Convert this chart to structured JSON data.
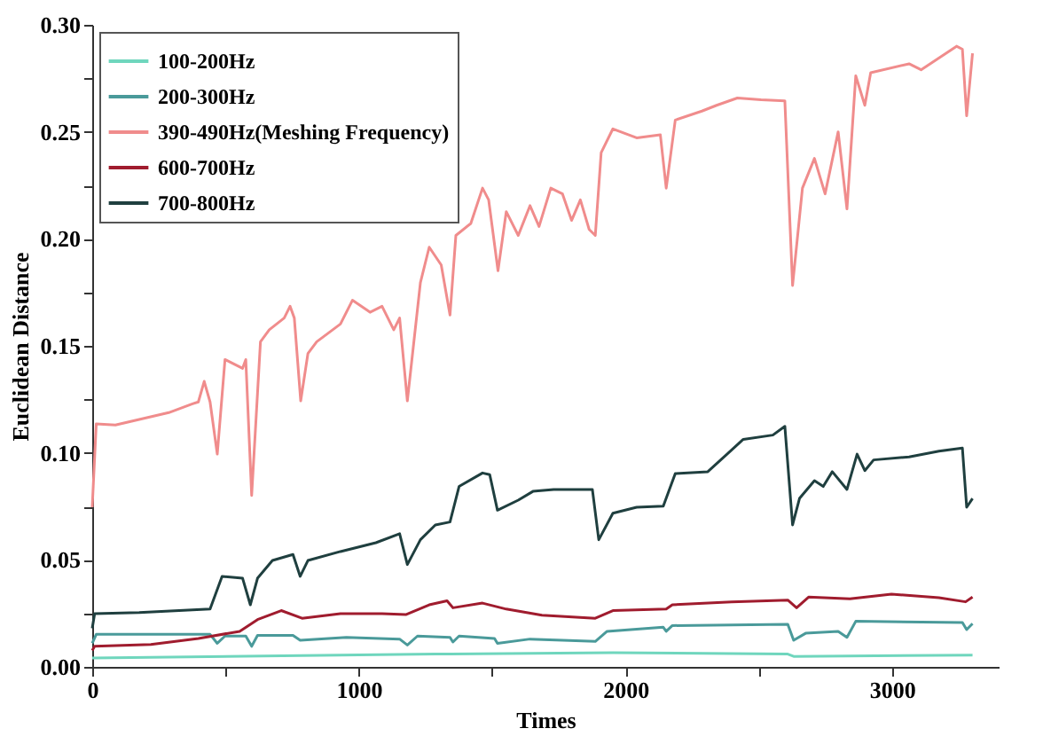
{
  "chart_data": {
    "type": "line",
    "xlabel": "Times",
    "ylabel": "Euclidean Distance",
    "xlim": [
      0,
      3400
    ],
    "ylim": [
      0,
      0.3
    ],
    "xticks": [
      0,
      {
        "value": 500,
        "label": null
      },
      1000,
      {
        "value": 1500,
        "label": null
      },
      2000,
      {
        "value": 2500,
        "label": null
      },
      3000
    ],
    "yticks": [
      {
        "value": 0,
        "label": "0.00"
      },
      {
        "value": 0.025,
        "label": null
      },
      {
        "value": 0.05,
        "label": "0.05"
      },
      {
        "value": 0.075,
        "label": null
      },
      {
        "value": 0.1,
        "label": "0.10"
      },
      {
        "value": 0.125,
        "label": null
      },
      {
        "value": 0.15,
        "label": "0.15"
      },
      {
        "value": 0.175,
        "label": null
      },
      {
        "value": 0.2,
        "label": "0.20"
      },
      {
        "value": 0.225,
        "label": null
      },
      {
        "value": 0.25,
        "label": "0.25"
      },
      {
        "value": 0.275,
        "label": null
      },
      {
        "value": 0.3,
        "label": "0.30"
      }
    ],
    "grid": false,
    "legend": "top left",
    "marker": "none",
    "line_style": "solid",
    "series": [
      {
        "name": "100-200Hz",
        "color": "#6fd6bd",
        "x": [
          0,
          1287,
          1953,
          2609,
          2631,
          3302
        ],
        "values": [
          0.0041,
          0.006,
          0.0066,
          0.006,
          0.0049,
          0.0055
        ]
      },
      {
        "name": "200-300Hz",
        "color": "#4a9a9a",
        "x": [
          0,
          15,
          442,
          469,
          498,
          576,
          598,
          620,
          753,
          780,
          953,
          1153,
          1182,
          1220,
          1342,
          1353,
          1376,
          1509,
          1520,
          1642,
          1887,
          1931,
          2142,
          2153,
          2176,
          2609,
          2631,
          2676,
          2798,
          2831,
          2864,
          3264,
          3280,
          3302
        ],
        "values": [
          0.011,
          0.0152,
          0.0152,
          0.011,
          0.0144,
          0.0144,
          0.0096,
          0.0147,
          0.0147,
          0.0124,
          0.0138,
          0.013,
          0.0102,
          0.0144,
          0.0138,
          0.0116,
          0.0144,
          0.0133,
          0.011,
          0.013,
          0.0119,
          0.0166,
          0.0185,
          0.0166,
          0.0193,
          0.0199,
          0.0124,
          0.0157,
          0.0166,
          0.0138,
          0.0213,
          0.0207,
          0.0174,
          0.0202
        ]
      },
      {
        "name": "390-490Hz(Meshing Frequency)",
        "color": "#f08c8c",
        "x": [
          0,
          15,
          87,
          287,
          376,
          398,
          420,
          442,
          469,
          498,
          564,
          576,
          598,
          631,
          664,
          720,
          742,
          758,
          782,
          809,
          842,
          931,
          976,
          1042,
          1087,
          1131,
          1153,
          1182,
          1231,
          1264,
          1309,
          1342,
          1364,
          1420,
          1464,
          1487,
          1522,
          1553,
          1598,
          1642,
          1676,
          1720,
          1764,
          1798,
          1831,
          1864,
          1887,
          1909,
          1953,
          2042,
          2131,
          2153,
          2187,
          2287,
          2342,
          2420,
          2509,
          2598,
          2627,
          2664,
          2709,
          2749,
          2798,
          2831,
          2864,
          2898,
          2920,
          3064,
          3109,
          3242,
          3264,
          3280,
          3302
        ],
        "values": [
          0.0746,
          0.1135,
          0.113,
          0.1188,
          0.1229,
          0.1238,
          0.1334,
          0.1238,
          0.0994,
          0.1436,
          0.1395,
          0.1436,
          0.0801,
          0.1519,
          0.1575,
          0.163,
          0.1685,
          0.163,
          0.1243,
          0.1464,
          0.1519,
          0.1602,
          0.1713,
          0.1657,
          0.1685,
          0.1575,
          0.163,
          0.1243,
          0.1796,
          0.1961,
          0.1878,
          0.1644,
          0.2016,
          0.2072,
          0.2237,
          0.2182,
          0.1851,
          0.2127,
          0.2016,
          0.2155,
          0.2058,
          0.2237,
          0.221,
          0.2086,
          0.2182,
          0.2044,
          0.2016,
          0.2403,
          0.2514,
          0.2472,
          0.2486,
          0.2237,
          0.2555,
          0.2597,
          0.2624,
          0.2658,
          0.265,
          0.2645,
          0.1782,
          0.2237,
          0.2376,
          0.221,
          0.25,
          0.214,
          0.2762,
          0.2624,
          0.2776,
          0.2818,
          0.279,
          0.29,
          0.2886,
          0.2575,
          0.2867
        ]
      },
      {
        "name": "600-700Hz",
        "color": "#a01c2e",
        "x": [
          0,
          9,
          220,
          398,
          553,
          620,
          709,
          787,
          931,
          1087,
          1176,
          1264,
          1331,
          1353,
          1464,
          1553,
          1687,
          1887,
          1953,
          2153,
          2176,
          2398,
          2609,
          2642,
          2687,
          2842,
          2998,
          3176,
          3276,
          3302
        ],
        "values": [
          0.0077,
          0.0096,
          0.0105,
          0.0133,
          0.0166,
          0.0221,
          0.0263,
          0.0227,
          0.0249,
          0.0249,
          0.0244,
          0.029,
          0.0309,
          0.0276,
          0.0298,
          0.027,
          0.0241,
          0.0227,
          0.0263,
          0.027,
          0.029,
          0.0304,
          0.0312,
          0.0276,
          0.0326,
          0.0318,
          0.034,
          0.0323,
          0.0304,
          0.0326
        ]
      },
      {
        "name": "700-800Hz",
        "color": "#1f3f3f",
        "x": [
          0,
          9,
          176,
          442,
          487,
          564,
          593,
          620,
          676,
          753,
          780,
          809,
          931,
          1064,
          1153,
          1182,
          1231,
          1287,
          1342,
          1376,
          1464,
          1491,
          1520,
          1598,
          1653,
          1731,
          1820,
          1876,
          1900,
          1953,
          2042,
          2142,
          2187,
          2309,
          2442,
          2553,
          2598,
          2627,
          2653,
          2709,
          2742,
          2776,
          2831,
          2869,
          2898,
          2931,
          3064,
          3176,
          3264,
          3280,
          3302
        ],
        "values": [
          0.018,
          0.0249,
          0.0254,
          0.027,
          0.0423,
          0.0414,
          0.029,
          0.0414,
          0.0497,
          0.0525,
          0.0423,
          0.0497,
          0.0539,
          0.058,
          0.0622,
          0.0478,
          0.0594,
          0.0663,
          0.0677,
          0.0843,
          0.0906,
          0.0898,
          0.0732,
          0.0779,
          0.082,
          0.0829,
          0.0829,
          0.0829,
          0.0594,
          0.0718,
          0.0746,
          0.0751,
          0.0903,
          0.0912,
          0.1063,
          0.1083,
          0.1124,
          0.0663,
          0.0787,
          0.087,
          0.0843,
          0.0912,
          0.0829,
          0.0994,
          0.0917,
          0.0967,
          0.0981,
          0.1008,
          0.1022,
          0.0746,
          0.0787
        ]
      }
    ]
  }
}
